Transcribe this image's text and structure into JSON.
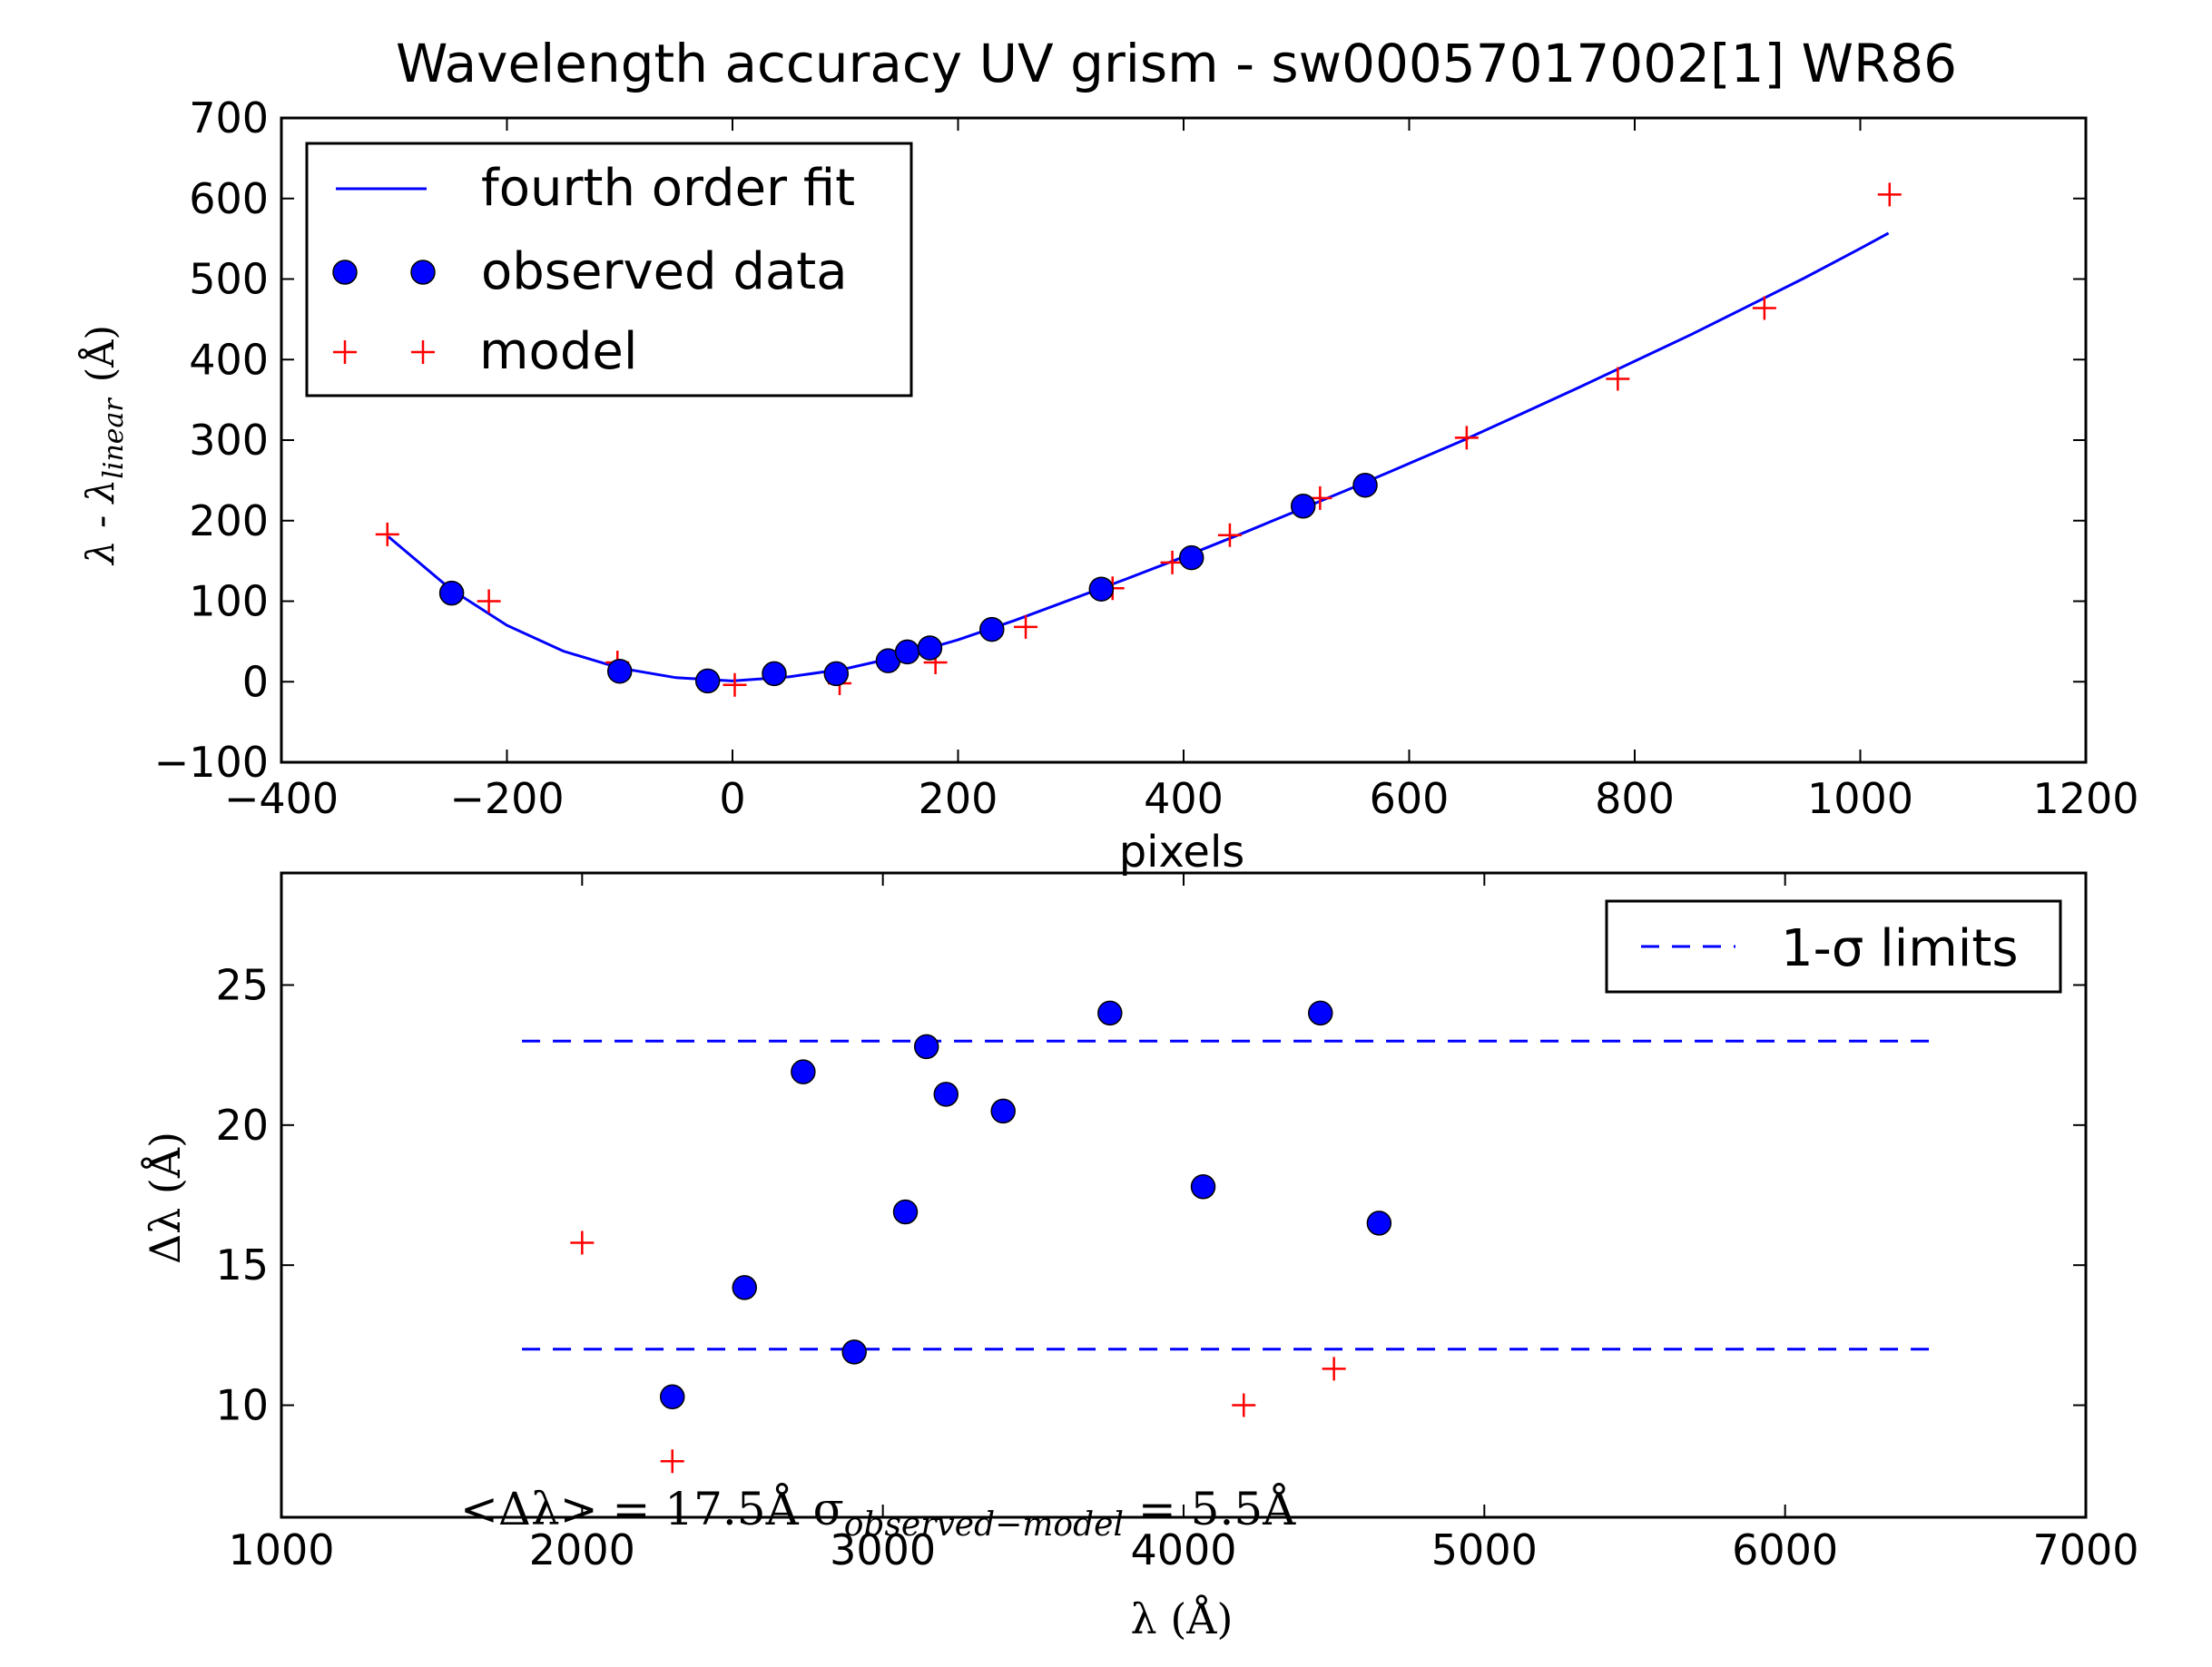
{
  "figure_title": "Wavelength accuracy UV grism - sw00057017002[1] WR86",
  "colors": {
    "fit": "#0000ff",
    "observed": "#0000ff",
    "model": "#ff0000",
    "sigma": "#0000ff"
  },
  "chart_data": [
    {
      "type": "scatter",
      "xlabel": "pixels",
      "ylabel": "λ - λ",
      "ylabel_sub": "linear",
      "ylabel_unit": "(Å)",
      "xlim": [
        -400,
        1200
      ],
      "ylim": [
        -100,
        700
      ],
      "xticks": [
        -400,
        -200,
        0,
        200,
        400,
        600,
        800,
        1000,
        1200
      ],
      "yticks": [
        -100,
        0,
        100,
        200,
        300,
        400,
        500,
        600,
        700
      ],
      "grid": false,
      "legend_position": "top-left",
      "legend": [
        "fourth order fit",
        "observed data",
        "model"
      ],
      "series": [
        {
          "name": "fourth order fit",
          "kind": "line",
          "x": [
            -305,
            -250,
            -200,
            -150,
            -100,
            -50,
            0,
            50,
            100,
            150,
            200,
            250,
            300,
            350,
            400,
            450,
            500,
            550,
            600,
            650,
            700,
            750,
            800,
            850,
            900,
            950,
            1000,
            1025
          ],
          "y": [
            180,
            115,
            70,
            38,
            17,
            5,
            1,
            6,
            16,
            32,
            52,
            76,
            102,
            128,
            155,
            183,
            212,
            241,
            271,
            301,
            333,
            365,
            398,
            431,
            466,
            501,
            538,
            557
          ]
        },
        {
          "name": "observed data",
          "kind": "points",
          "x": [
            -249,
            -100,
            -22,
            37,
            92,
            138,
            155,
            175,
            230,
            327,
            407,
            506,
            561
          ],
          "y": [
            110,
            13,
            1,
            10,
            10,
            26,
            37,
            42,
            65,
            115,
            154,
            218,
            244
          ]
        },
        {
          "name": "model",
          "kind": "plus",
          "x": [
            -306,
            -216,
            -102,
            2,
            95,
            180,
            260,
            337,
            390,
            441,
            521,
            651,
            785,
            915,
            1026
          ],
          "y": [
            183,
            100,
            24,
            -4,
            -2,
            24,
            68,
            116,
            148,
            182,
            228,
            303,
            376,
            464,
            605
          ]
        }
      ]
    },
    {
      "type": "scatter",
      "xlabel": "λ (Å)",
      "ylabel": "Δλ (Å)",
      "xlim": [
        1000,
        7000
      ],
      "ylim": [
        6,
        29
      ],
      "xticks": [
        1000,
        2000,
        3000,
        4000,
        5000,
        6000,
        7000
      ],
      "yticks": [
        10,
        15,
        20,
        25
      ],
      "grid": false,
      "legend_position": "top-right",
      "legend": [
        "1-σ limits"
      ],
      "annotation": "<Δλ> = 17.5Å  σ",
      "annotation_sub": "observed−model",
      "annotation_tail": " = 5.5Å",
      "series": [
        {
          "name": "1-σ limits",
          "kind": "hlines",
          "x_range": [
            1800,
            6480
          ],
          "y": [
            23,
            12
          ]
        },
        {
          "name": "observed",
          "kind": "points",
          "x": [
            2300,
            2540,
            2735,
            2905,
            3075,
            3145,
            3210,
            3400,
            3755,
            4065,
            4455,
            4650
          ],
          "y": [
            10.3,
            14.2,
            21.9,
            11.9,
            16.9,
            22.8,
            21.1,
            20.5,
            24,
            17.8,
            24,
            16.5
          ]
        },
        {
          "name": "model",
          "kind": "plus",
          "x": [
            2000,
            2300,
            4200,
            4500
          ],
          "y": [
            15.8,
            8,
            10,
            11.3
          ]
        }
      ]
    }
  ]
}
